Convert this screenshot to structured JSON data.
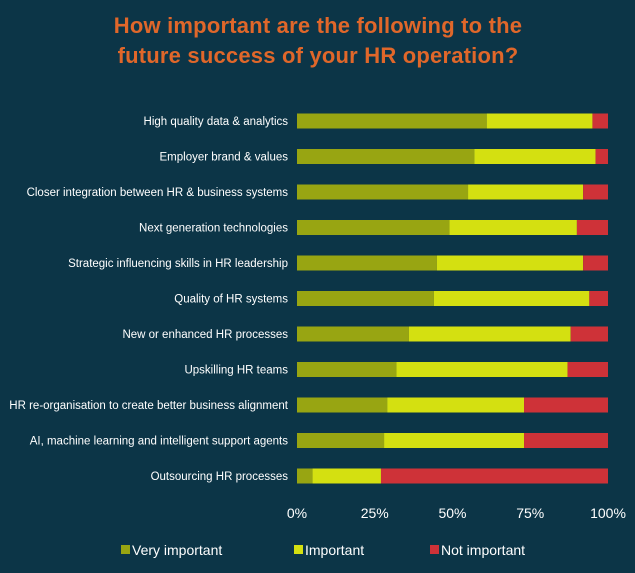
{
  "chart_data": {
    "type": "bar",
    "orientation": "horizontal",
    "stacked": true,
    "normalized": true,
    "title": "How important are the following to the future success of your HR operation?",
    "title_lines": [
      "How important are the following to the",
      "future success of your HR operation?"
    ],
    "categories": [
      "High quality data & analytics",
      "Employer brand & values",
      "Closer integration between HR & business systems",
      "Next generation technologies",
      "Strategic influencing skills in HR leadership",
      "Quality of HR systems",
      "New or enhanced HR processes",
      "Upskilling HR teams",
      "HR re-organisation to create better business alignment",
      "AI, machine learning and intelligent support agents",
      "Outsourcing HR processes"
    ],
    "series": [
      {
        "name": "Very important",
        "color": "#98a512",
        "values": [
          61,
          57,
          55,
          49,
          45,
          44,
          36,
          32,
          29,
          28,
          5
        ]
      },
      {
        "name": "Important",
        "color": "#d4e011",
        "values": [
          34,
          39,
          37,
          41,
          47,
          50,
          52,
          55,
          44,
          45,
          22
        ]
      },
      {
        "name": "Not important",
        "color": "#ce3238",
        "values": [
          5,
          4,
          8,
          10,
          8,
          6,
          12,
          13,
          27,
          27,
          73
        ]
      }
    ],
    "xlim": [
      0,
      100
    ],
    "x_ticks": [
      "0%",
      "25%",
      "50%",
      "75%",
      "100%"
    ],
    "legend_position": "bottom",
    "grid": false
  }
}
